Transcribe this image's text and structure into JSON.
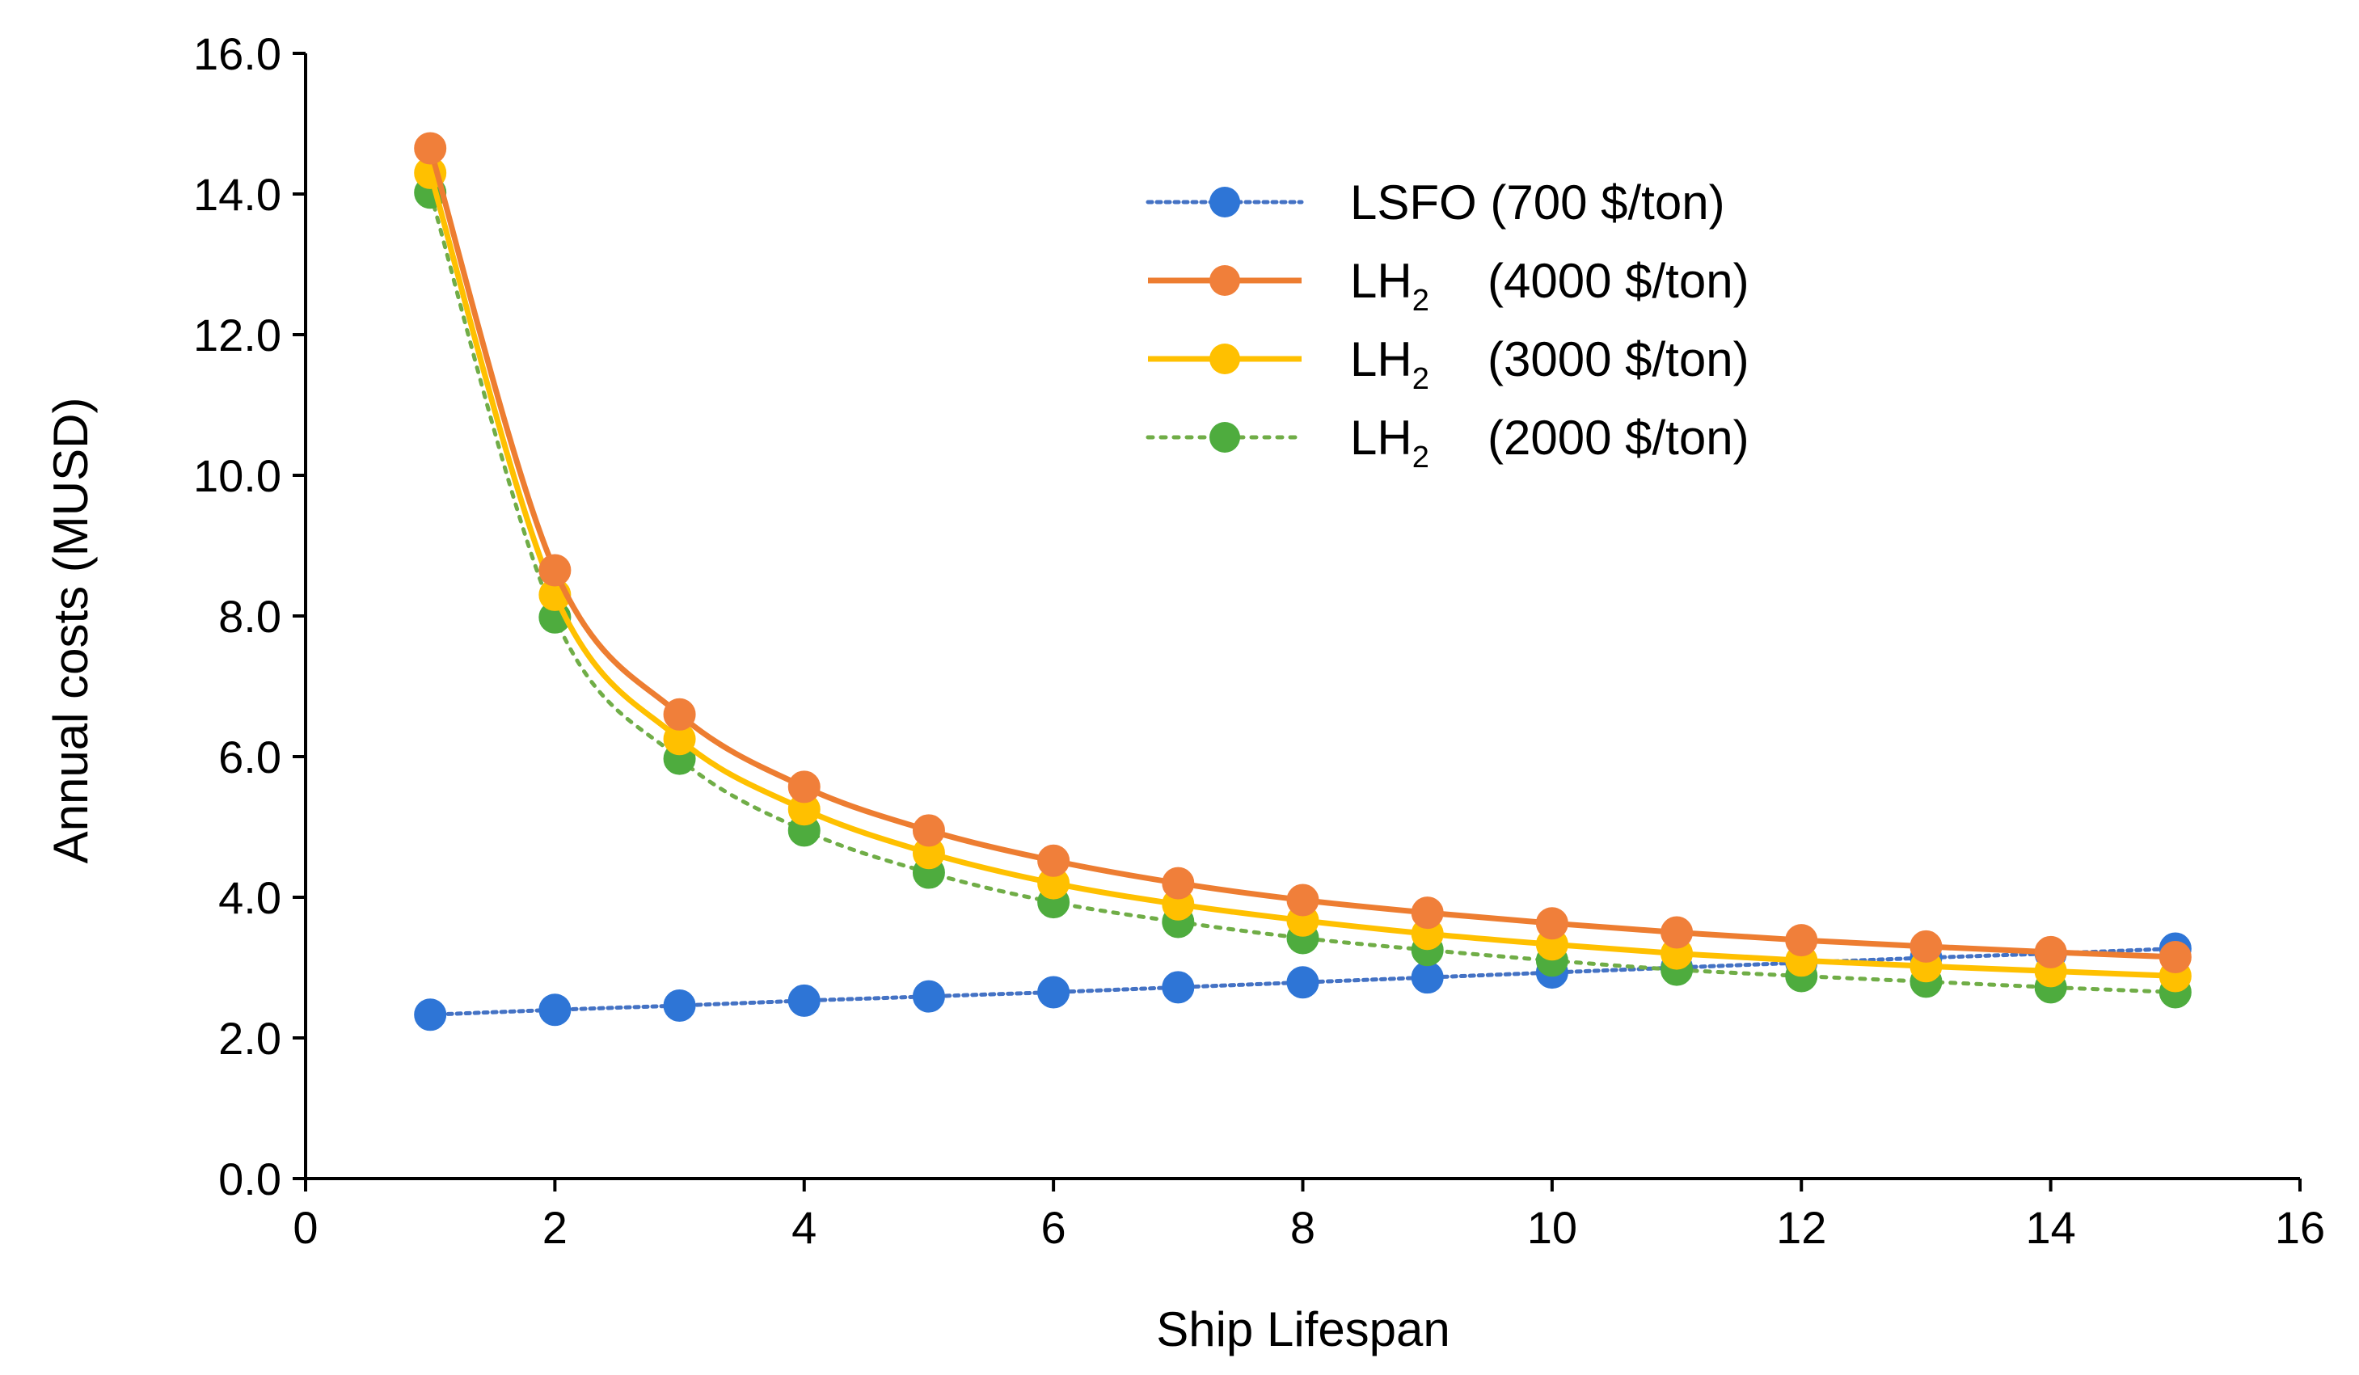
{
  "chart_data": {
    "type": "line",
    "title": "",
    "xlabel": "Ship Lifespan",
    "ylabel": "Annual costs (MUSD)",
    "xlim": [
      0,
      16
    ],
    "ylim": [
      0,
      16
    ],
    "x_ticks": [
      0,
      2,
      4,
      6,
      8,
      10,
      12,
      14,
      16
    ],
    "y_ticks": [
      0,
      2,
      4,
      6,
      8,
      10,
      12,
      14,
      16
    ],
    "x_tick_labels": [
      "0",
      "2",
      "4",
      "6",
      "8",
      "10",
      "12",
      "14",
      "16"
    ],
    "y_tick_labels": [
      "0.0",
      "2.0",
      "4.0",
      "6.0",
      "8.0",
      "10.0",
      "12.0",
      "14.0",
      "16.0"
    ],
    "grid": false,
    "legend_position": "top-right",
    "x": [
      1,
      2,
      3,
      4,
      5,
      6,
      7,
      8,
      9,
      10,
      11,
      12,
      13,
      14,
      15
    ],
    "series": [
      {
        "name": "LSFO (700 $/ton)",
        "legend_main": "LSFO",
        "legend_sub": "",
        "legend_rest": "(700 $/ton)",
        "color": "#4472C4",
        "marker_color": "#2E75D6",
        "line_style": "dotted",
        "values": [
          2.33,
          2.4,
          2.46,
          2.53,
          2.59,
          2.65,
          2.72,
          2.79,
          2.86,
          2.93,
          3.0,
          3.07,
          3.14,
          3.2,
          3.27
        ]
      },
      {
        "name": "LH2 (4000 $/ton)",
        "legend_main": "LH",
        "legend_sub": "2",
        "legend_rest": "(4000 $/ton)",
        "color": "#ED7D31",
        "marker_color": "#F07F3A",
        "line_style": "solid",
        "values": [
          14.65,
          8.65,
          6.6,
          5.57,
          4.95,
          4.52,
          4.2,
          3.96,
          3.78,
          3.63,
          3.5,
          3.39,
          3.3,
          3.22,
          3.15
        ]
      },
      {
        "name": "LH2 (3000 $/ton)",
        "legend_main": "LH",
        "legend_sub": "2",
        "legend_rest": "(3000 $/ton)",
        "color": "#FFC000",
        "marker_color": "#FFC000",
        "line_style": "solid",
        "values": [
          14.3,
          8.3,
          6.25,
          5.25,
          4.63,
          4.2,
          3.9,
          3.67,
          3.48,
          3.33,
          3.2,
          3.1,
          3.02,
          2.95,
          2.88
        ]
      },
      {
        "name": "LH2 (2000 $/ton)",
        "legend_main": "LH",
        "legend_sub": "2",
        "legend_rest": "(2000 $/ton)",
        "color": "#70AD47",
        "marker_color": "#4EAC3E",
        "line_style": "dotted",
        "values": [
          14.02,
          7.98,
          5.97,
          4.95,
          4.35,
          3.93,
          3.65,
          3.42,
          3.25,
          3.1,
          2.97,
          2.88,
          2.8,
          2.72,
          2.65
        ]
      }
    ]
  }
}
